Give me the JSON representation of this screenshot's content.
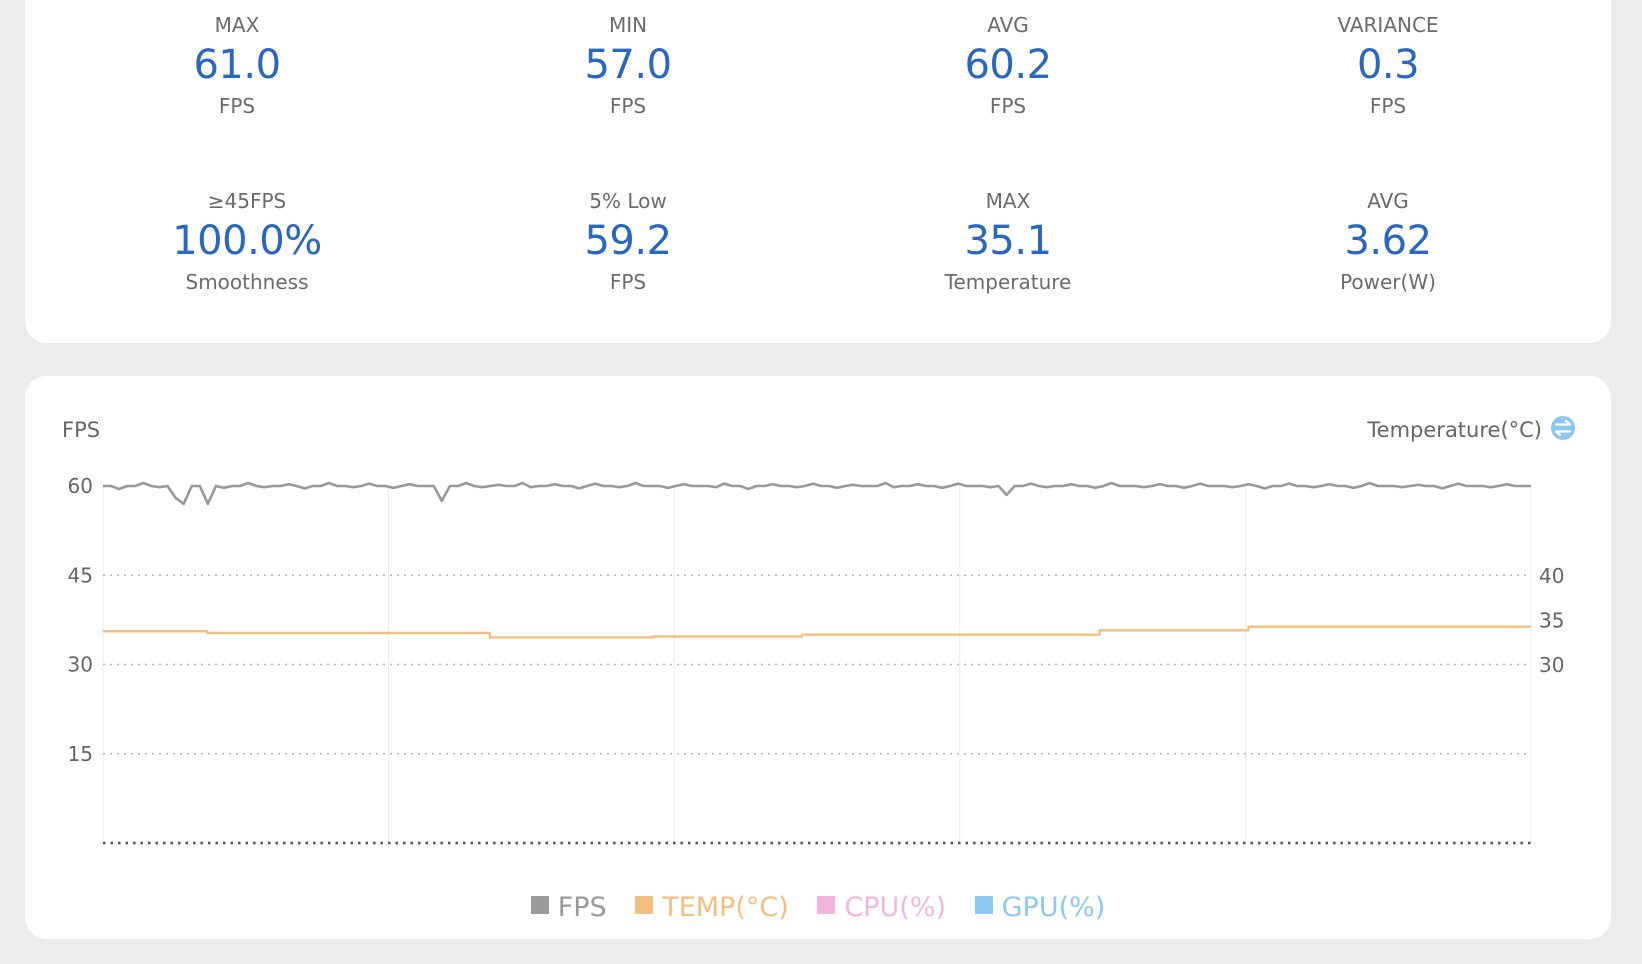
{
  "stats": [
    {
      "label": "MAX",
      "value": "61.0",
      "unit": "FPS"
    },
    {
      "label": "MIN",
      "value": "57.0",
      "unit": "FPS"
    },
    {
      "label": "AVG",
      "value": "60.2",
      "unit": "FPS"
    },
    {
      "label": "VARIANCE",
      "value": "0.3",
      "unit": "FPS"
    },
    {
      "label": "≥45FPS",
      "value": "100.0%",
      "unit": "Smoothness"
    },
    {
      "label": "5% Low",
      "value": "59.2",
      "unit": "FPS"
    },
    {
      "label": "MAX",
      "value": "35.1",
      "unit": "Temperature"
    },
    {
      "label": "AVG",
      "value": "3.62",
      "unit": "Power(W)"
    }
  ],
  "chart": {
    "left_axis_title": "FPS",
    "right_axis_title": "Temperature(°C)",
    "toggle_icon": "swap-vertical-icon"
  },
  "legend": [
    {
      "label": "FPS",
      "color": "#999999"
    },
    {
      "label": "TEMP(°C)",
      "color": "#f4bf7e"
    },
    {
      "label": "CPU(%)",
      "color": "#f2b6dd"
    },
    {
      "label": "GPU(%)",
      "color": "#8dc8f2"
    }
  ],
  "chart_data": {
    "type": "line",
    "left_axis": {
      "label": "FPS",
      "ylim": [
        0,
        60
      ],
      "ticks": [
        "15",
        "30",
        "45",
        "60"
      ]
    },
    "right_axis": {
      "label": "Temperature(°C)",
      "ticks": [
        "30",
        "35",
        "40"
      ]
    },
    "grid": true,
    "legend_position": "bottom",
    "series": [
      {
        "name": "FPS",
        "axis": "left",
        "color": "#999999",
        "values": [
          60,
          60,
          59.5,
          60,
          60,
          60.5,
          60,
          59.8,
          60,
          58,
          57,
          60,
          60,
          57,
          60,
          59.7,
          60,
          60,
          60.5,
          60,
          59.8,
          60,
          60,
          60.3,
          60,
          59.6,
          60,
          60,
          60.5,
          60,
          60,
          59.8,
          60,
          60.4,
          60,
          60,
          59.7,
          60,
          60.3,
          60,
          60,
          60,
          57.5,
          60,
          60,
          60.5,
          60,
          59.8,
          60,
          60.2,
          60,
          60,
          60.5,
          59.8,
          60,
          60,
          60.3,
          60,
          60,
          59.6,
          60,
          60.4,
          60,
          60,
          59.8,
          60,
          60.5,
          60,
          60,
          60,
          59.7,
          60,
          60.3,
          60,
          60,
          60,
          59.8,
          60.4,
          60,
          60,
          59.5,
          60,
          60,
          60.3,
          60,
          60,
          59.8,
          60,
          60.4,
          60,
          60,
          59.7,
          60,
          60.2,
          60,
          60,
          60,
          60.5,
          59.8,
          60,
          60,
          60.3,
          60,
          60,
          59.7,
          60,
          60.4,
          60,
          60,
          60,
          59.8,
          60,
          58.5,
          60,
          60,
          60.4,
          60,
          59.8,
          60,
          60,
          60.3,
          60,
          60,
          59.7,
          60,
          60.5,
          60,
          60,
          60,
          59.8,
          60,
          60.3,
          60,
          60,
          59.7,
          60,
          60.4,
          60,
          60,
          60,
          59.8,
          60,
          60.3,
          60,
          59.6,
          60,
          60,
          60.4,
          60,
          60,
          59.8,
          60,
          60.3,
          60,
          60,
          59.7,
          60,
          60.5,
          60,
          60,
          60,
          59.8,
          60,
          60.2,
          60,
          60,
          59.6,
          60,
          60.4,
          60,
          60,
          60,
          59.8,
          60,
          60.3,
          60,
          60,
          60
        ]
      },
      {
        "name": "TEMP(°C)",
        "axis": "right",
        "color": "#f4bf7e",
        "values": [
          33.8,
          33.8,
          33.8,
          33.8,
          33.8,
          33.8,
          33.8,
          33.6,
          33.6,
          33.6,
          33.6,
          33.6,
          33.6,
          33.6,
          33.6,
          33.6,
          33.6,
          33.6,
          33.6,
          33.6,
          33.6,
          33.6,
          33.6,
          33.6,
          33.6,
          33.6,
          33.1,
          33.1,
          33.1,
          33.1,
          33.1,
          33.1,
          33.1,
          33.1,
          33.1,
          33.1,
          33.1,
          33.2,
          33.2,
          33.2,
          33.2,
          33.2,
          33.2,
          33.2,
          33.2,
          33.2,
          33.2,
          33.4,
          33.4,
          33.4,
          33.4,
          33.4,
          33.4,
          33.4,
          33.4,
          33.4,
          33.4,
          33.4,
          33.4,
          33.4,
          33.4,
          33.4,
          33.4,
          33.4,
          33.4,
          33.4,
          33.4,
          33.9,
          33.9,
          33.9,
          33.9,
          33.9,
          33.9,
          33.9,
          33.9,
          33.9,
          33.9,
          34.3,
          34.3,
          34.3,
          34.3,
          34.3,
          34.3,
          34.3,
          34.3,
          34.3,
          34.3,
          34.3,
          34.3,
          34.3,
          34.3,
          34.3,
          34.3,
          34.3,
          34.3,
          34.3,
          34.3
        ]
      }
    ]
  }
}
